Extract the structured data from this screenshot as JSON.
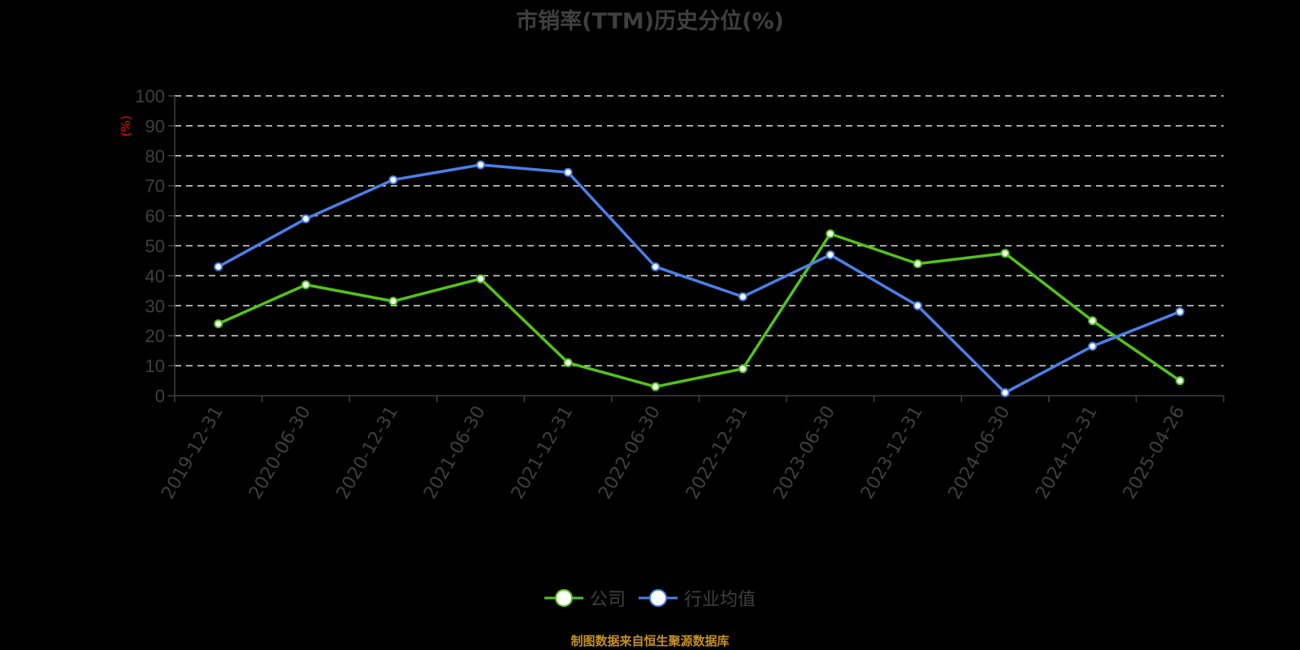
{
  "title": "市销率(TTM)历史分位(%)",
  "source_note": "制图数据来自恒生聚源数据库",
  "colors": {
    "company": "#52c41a",
    "industry": "#4a80e8",
    "axis_text": "#3f3f3f",
    "unit": "#ff0000",
    "grid": "#dddddd",
    "source": "#c6901e"
  },
  "legend": [
    {
      "name": "公司",
      "color": "#52c41a"
    },
    {
      "name": "行业均值",
      "color": "#4a80e8"
    }
  ],
  "chart_data": {
    "type": "line",
    "title": "市销率(TTM)历史分位(%)",
    "xlabel": "",
    "ylabel": "(%)",
    "ylim": [
      0,
      100
    ],
    "yticks": [
      0,
      10,
      20,
      30,
      40,
      50,
      60,
      70,
      80,
      90,
      100
    ],
    "grid": true,
    "legend_position": "bottom",
    "categories": [
      "2019-12-31",
      "2020-06-30",
      "2020-12-31",
      "2021-06-30",
      "2021-12-31",
      "2022-06-30",
      "2022-12-31",
      "2023-06-30",
      "2023-12-31",
      "2024-06-30",
      "2024-12-31",
      "2025-04-26"
    ],
    "series": [
      {
        "name": "公司",
        "color": "#52c41a",
        "values": [
          24,
          37,
          31.5,
          39,
          11,
          3,
          9,
          54,
          44,
          47.5,
          25,
          5
        ]
      },
      {
        "name": "行业均值",
        "color": "#4a80e8",
        "values": [
          43,
          59,
          72,
          77,
          74.5,
          43,
          33,
          47,
          30,
          1,
          16.5,
          28
        ]
      }
    ]
  }
}
